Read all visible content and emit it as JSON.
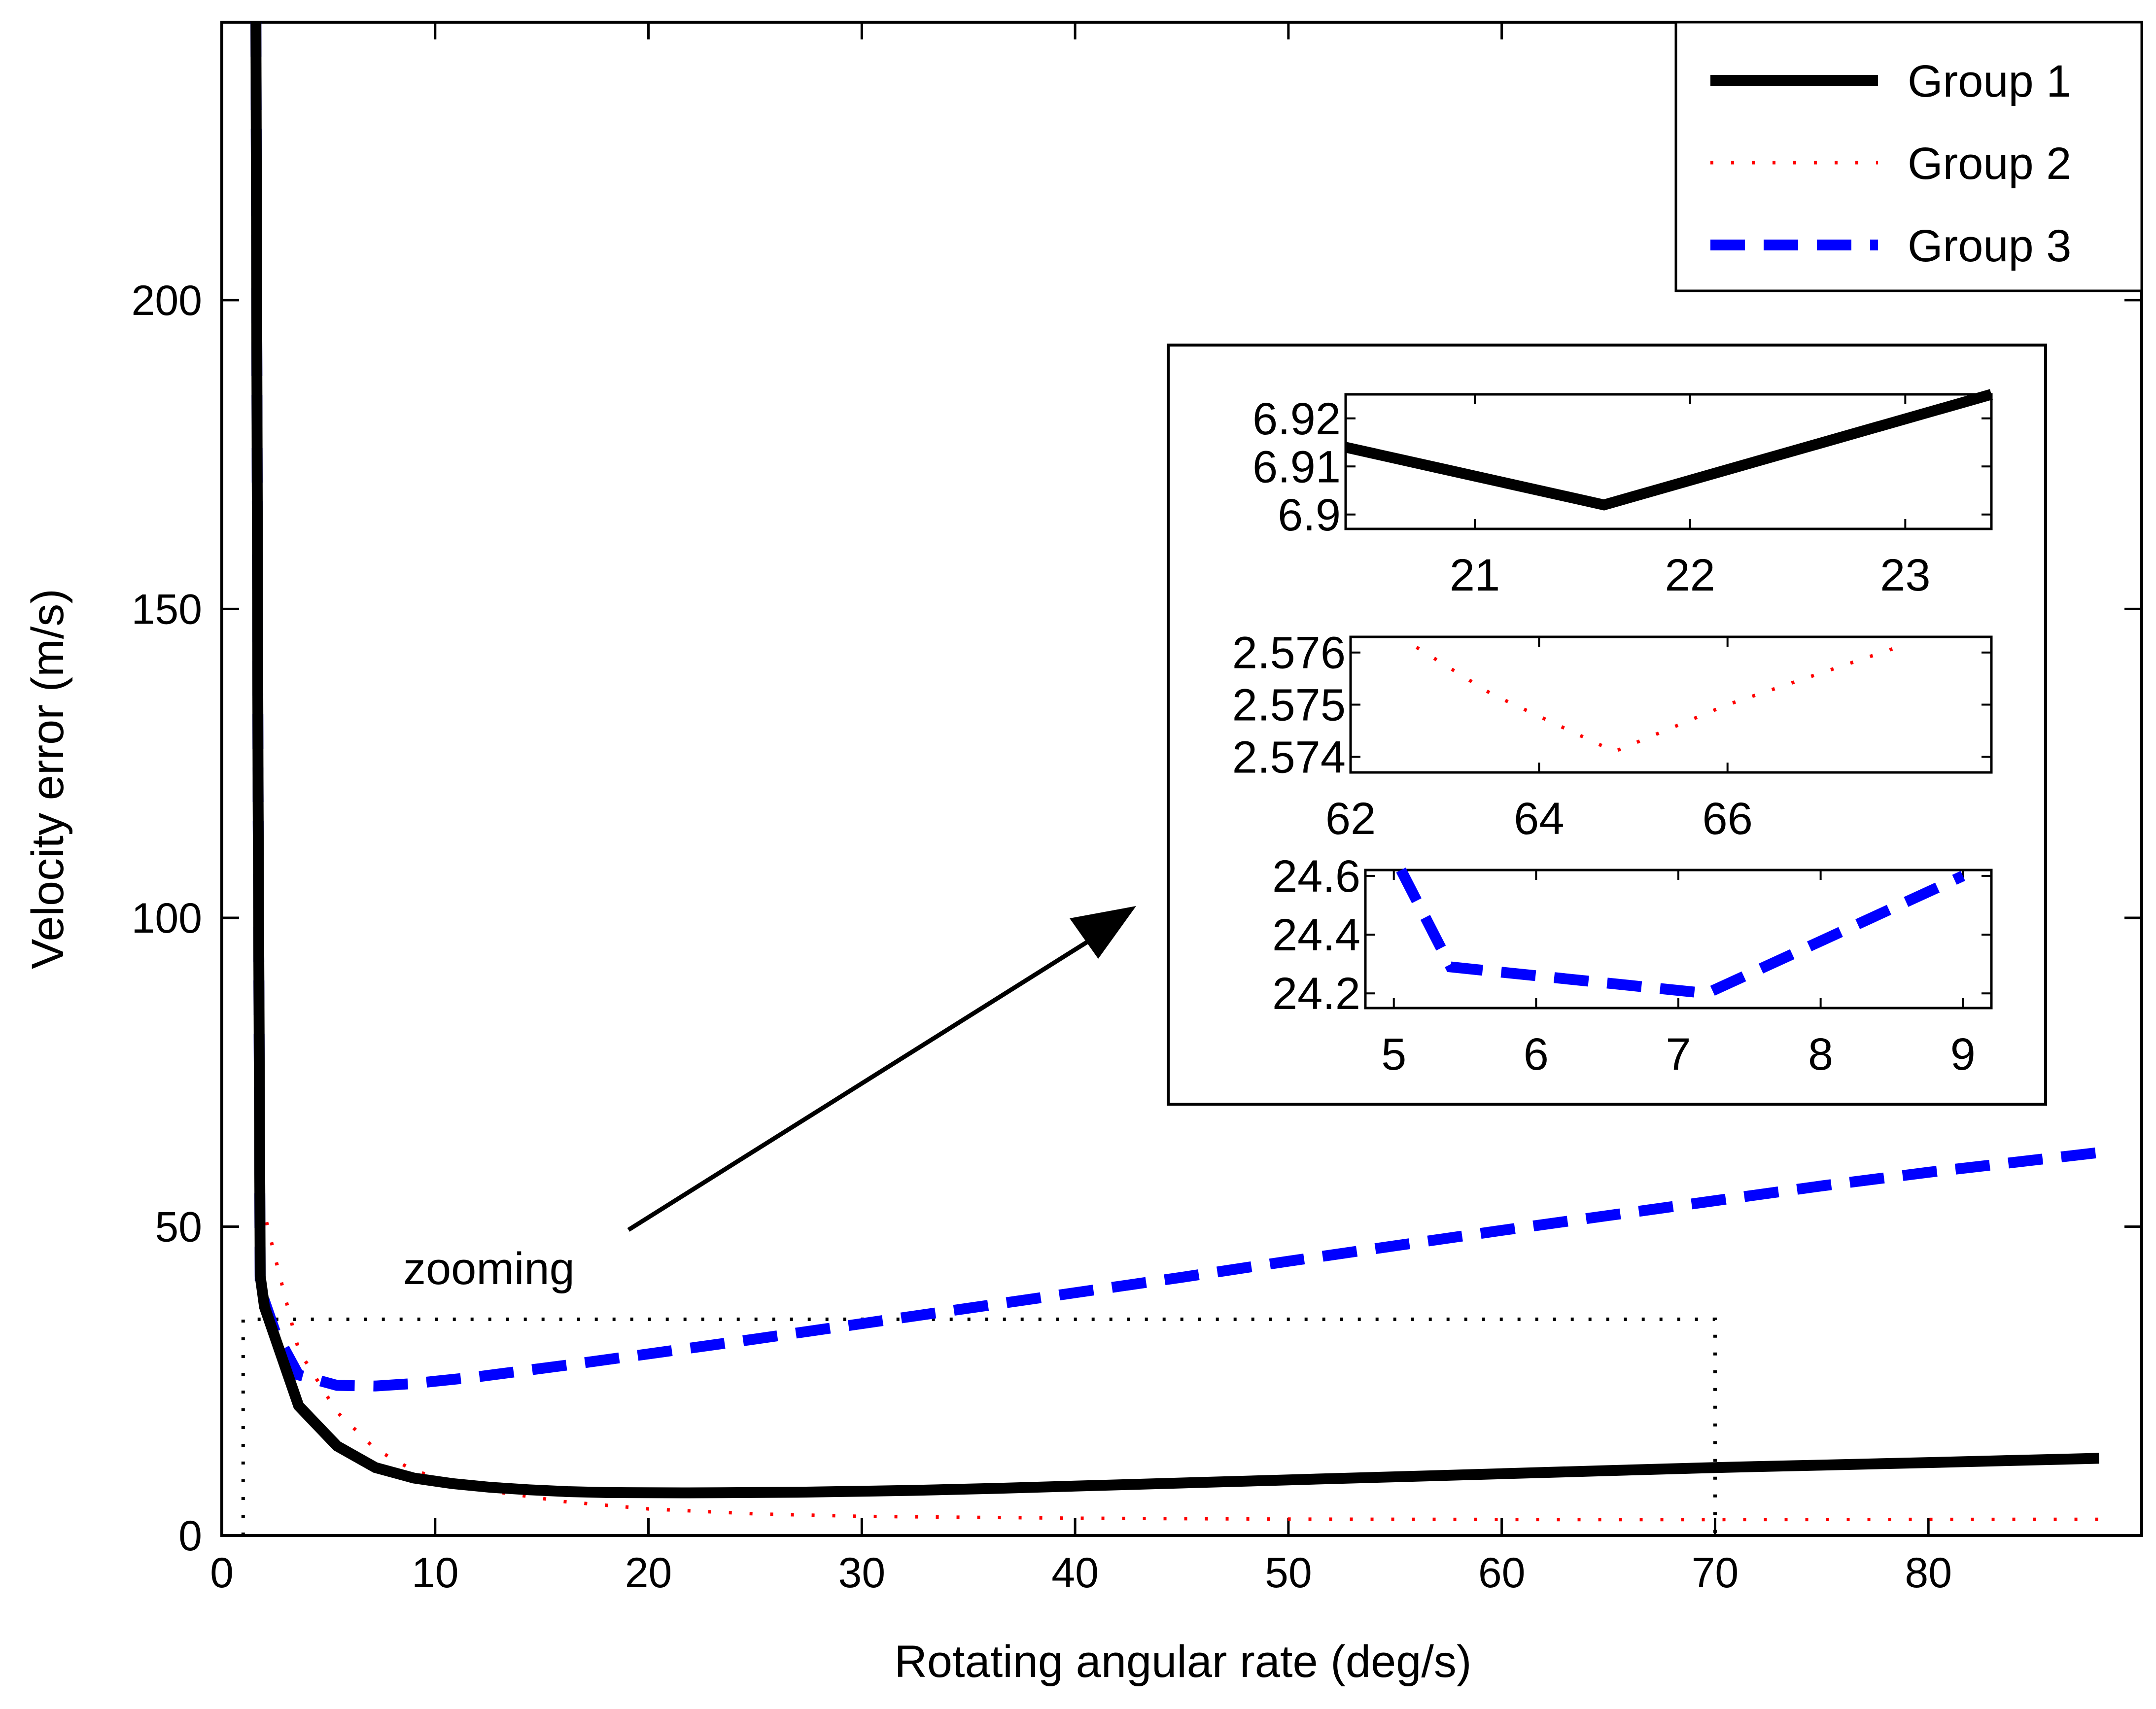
{
  "chart_data": {
    "type": "line",
    "xlabel": "Rotating angular rate (deg/s)",
    "ylabel": "Velocity error (m/s)",
    "xlim": [
      0,
      90
    ],
    "ylim": [
      0,
      245
    ],
    "xticks": [
      0,
      10,
      20,
      30,
      40,
      50,
      60,
      70,
      80
    ],
    "yticks": [
      0,
      50,
      100,
      150,
      200
    ],
    "grid": false,
    "legend_position": "top-right",
    "series": [
      {
        "name": "Group 1",
        "color": "#000000",
        "style": "solid",
        "x": [
          1.6,
          1.7,
          1.8,
          2,
          3.6,
          5.4,
          7.2,
          9,
          10.8,
          12.6,
          14.4,
          16.2,
          18,
          19.8,
          21.6,
          23.4,
          27,
          32.4,
          36,
          40,
          45,
          50,
          55,
          60,
          65,
          70,
          75,
          80,
          88
        ],
        "y": [
          245,
          120,
          42,
          37,
          21,
          14.5,
          11,
          9.3,
          8.4,
          7.8,
          7.4,
          7.1,
          6.95,
          6.92,
          6.9,
          6.93,
          7.0,
          7.3,
          7.6,
          8.0,
          8.5,
          9.0,
          9.5,
          10.0,
          10.5,
          11.0,
          11.4,
          11.8,
          12.5
        ]
      },
      {
        "name": "Group 2",
        "color": "#ff0000",
        "style": "dotted",
        "x": [
          1.6,
          1.7,
          1.8,
          2.5,
          3.6,
          5.4,
          7.2,
          9,
          12,
          16,
          20,
          25,
          30,
          40,
          50,
          60,
          62,
          64.8,
          67,
          70,
          80,
          88
        ],
        "y": [
          245,
          120,
          55,
          45,
          30,
          20,
          14,
          10.5,
          7.5,
          5.5,
          4.3,
          3.5,
          3.1,
          2.8,
          2.65,
          2.59,
          2.576,
          2.574,
          2.576,
          2.58,
          2.6,
          2.62
        ]
      },
      {
        "name": "Group 3",
        "color": "#0000ff",
        "style": "dashed",
        "x": [
          1.6,
          1.7,
          1.8,
          2.5,
          3.6,
          5.4,
          7.2,
          9,
          12,
          16,
          20,
          25,
          30,
          35,
          40,
          45,
          50,
          55,
          60,
          65,
          70,
          75,
          80,
          88
        ],
        "y": [
          245,
          120,
          40,
          33,
          26,
          24.3,
          24.2,
          24.6,
          25.7,
          27.5,
          29.4,
          31.8,
          34.3,
          36.8,
          39.3,
          41.8,
          44.4,
          46.9,
          49.4,
          51.8,
          54.2,
          56.6,
          58.8,
          62
        ]
      }
    ],
    "annotations": [
      {
        "text": "zooming",
        "type": "arrow-label"
      }
    ],
    "zoom_box": {
      "x_range": [
        1,
        70
      ],
      "y_range": [
        0,
        35
      ]
    },
    "insets": [
      {
        "series": "Group 1",
        "xlim": [
          20.4,
          23.4
        ],
        "ylim": [
          6.897,
          6.925
        ],
        "xticks": [
          "21",
          "22",
          "23"
        ],
        "xtick_values": [
          21,
          22,
          23
        ],
        "yticks": [
          "6.9",
          "6.91",
          "6.92"
        ],
        "ytick_values": [
          6.9,
          6.91,
          6.92
        ],
        "x": [
          20.4,
          21.6,
          23.4
        ],
        "y": [
          6.914,
          6.902,
          6.925
        ]
      },
      {
        "series": "Group 2",
        "xlim": [
          62,
          68.8
        ],
        "ylim": [
          2.5737,
          2.5763
        ],
        "xticks": [
          "62",
          "64",
          "66"
        ],
        "xtick_values": [
          62,
          64,
          66
        ],
        "yticks": [
          "2.574",
          "2.575",
          "2.576"
        ],
        "ytick_values": [
          2.574,
          2.575,
          2.576
        ],
        "x": [
          62.7,
          63.5,
          64.8,
          66,
          67.8
        ],
        "y": [
          2.5761,
          2.5752,
          2.5741,
          2.575,
          2.5761
        ]
      },
      {
        "series": "Group 3",
        "xlim": [
          4.8,
          9.2
        ],
        "ylim": [
          24.15,
          24.62
        ],
        "xticks": [
          "5",
          "6",
          "7",
          "8",
          "9"
        ],
        "xtick_values": [
          5,
          6,
          7,
          8,
          9
        ],
        "yticks": [
          "24.2",
          "24.4",
          "24.6"
        ],
        "ytick_values": [
          24.2,
          24.4,
          24.6
        ],
        "x": [
          5.05,
          5.4,
          7.2,
          9
        ],
        "y": [
          24.62,
          24.29,
          24.2,
          24.6
        ]
      }
    ]
  }
}
